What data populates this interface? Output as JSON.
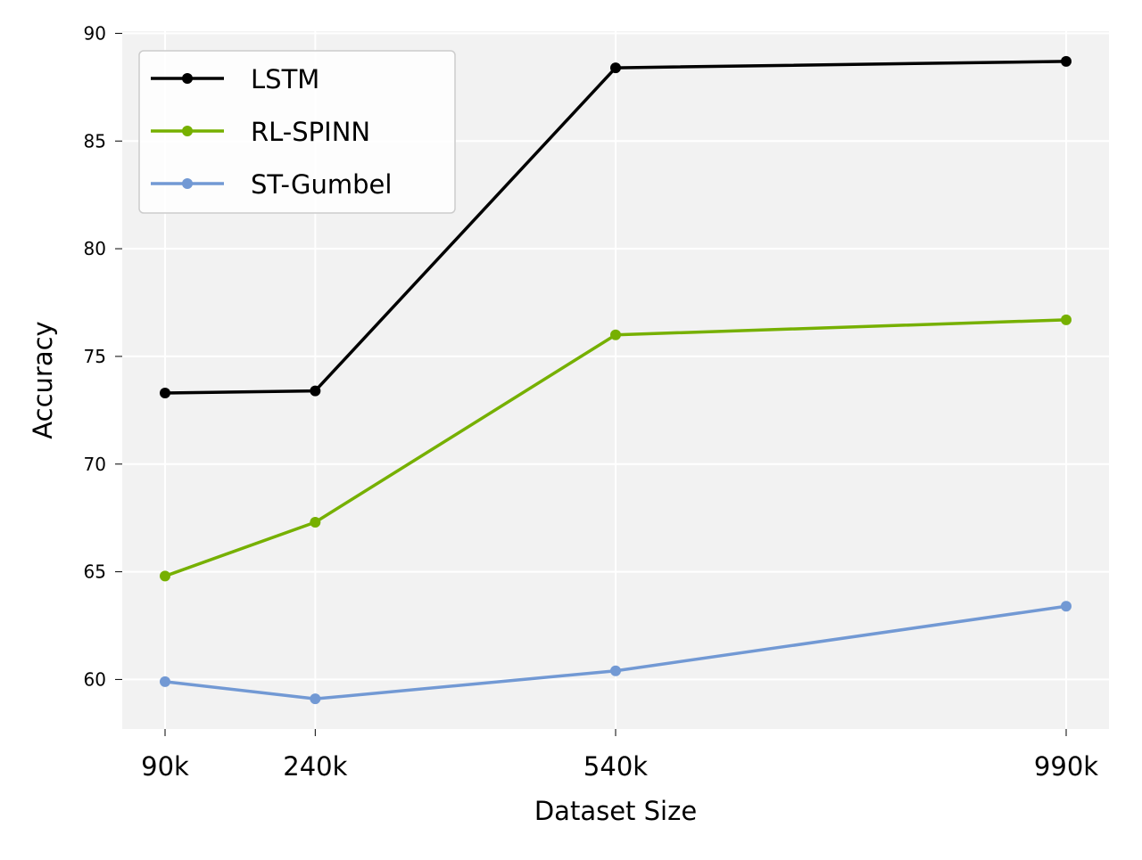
{
  "chart_data": {
    "type": "line",
    "categories": [
      "90k",
      "240k",
      "540k",
      "990k"
    ],
    "x": [
      90,
      240,
      540,
      990
    ],
    "xlabel": "Dataset Size",
    "ylabel": "Accuracy",
    "ylim": [
      57.7,
      90.1
    ],
    "yticks": [
      60,
      65,
      70,
      75,
      80,
      85,
      90
    ],
    "grid": true,
    "legend_position": "top-left",
    "series": [
      {
        "name": "LSTM",
        "color": "#000000",
        "values": [
          73.3,
          73.4,
          88.4,
          88.7
        ]
      },
      {
        "name": "RL-SPINN",
        "color": "#76b000",
        "values": [
          64.8,
          67.3,
          76.0,
          76.7
        ]
      },
      {
        "name": "ST-Gumbel",
        "color": "#7299d4",
        "values": [
          59.9,
          59.1,
          60.4,
          63.4
        ]
      }
    ]
  }
}
